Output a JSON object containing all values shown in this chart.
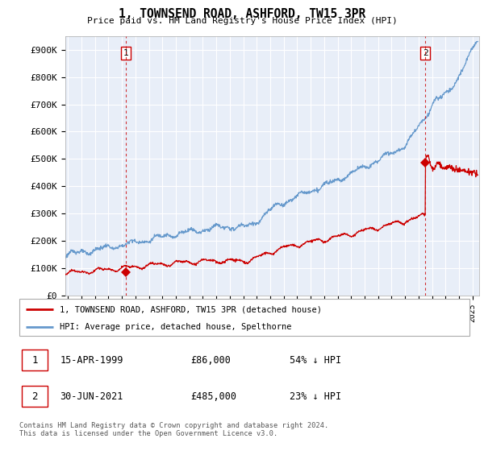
{
  "title": "1, TOWNSEND ROAD, ASHFORD, TW15 3PR",
  "subtitle": "Price paid vs. HM Land Registry's House Price Index (HPI)",
  "ylabel_ticks": [
    "£0",
    "£100K",
    "£200K",
    "£300K",
    "£400K",
    "£500K",
    "£600K",
    "£700K",
    "£800K",
    "£900K"
  ],
  "ytick_values": [
    0,
    100000,
    200000,
    300000,
    400000,
    500000,
    600000,
    700000,
    800000,
    900000
  ],
  "ylim": [
    0,
    950000
  ],
  "xlim_start": 1994.8,
  "xlim_end": 2025.5,
  "point1_x": 1999.29,
  "point1_y": 86000,
  "point2_x": 2021.5,
  "point2_y": 485000,
  "red_color": "#cc0000",
  "blue_color": "#6699cc",
  "plot_bg_color": "#e8eef8",
  "grid_color": "#ffffff",
  "bg_color": "#ffffff",
  "legend_line1": "1, TOWNSEND ROAD, ASHFORD, TW15 3PR (detached house)",
  "legend_line2": "HPI: Average price, detached house, Spelthorne",
  "annotation1_date": "15-APR-1999",
  "annotation1_price": "£86,000",
  "annotation1_hpi": "54% ↓ HPI",
  "annotation2_date": "30-JUN-2021",
  "annotation2_price": "£485,000",
  "annotation2_hpi": "23% ↓ HPI",
  "footer": "Contains HM Land Registry data © Crown copyright and database right 2024.\nThis data is licensed under the Open Government Licence v3.0."
}
